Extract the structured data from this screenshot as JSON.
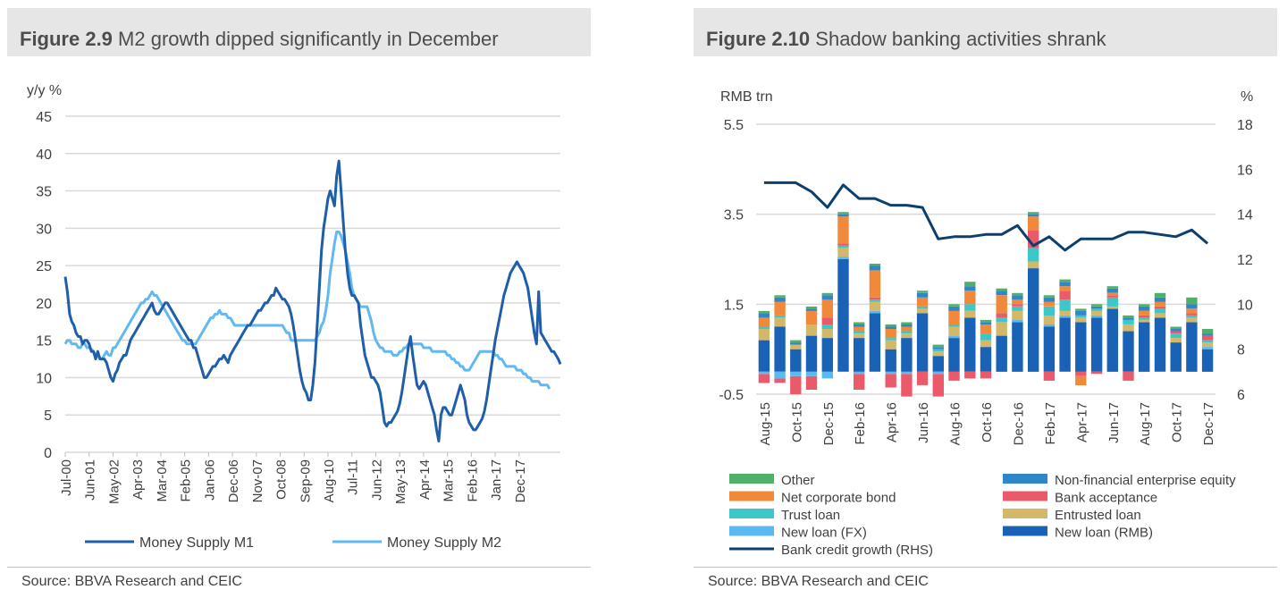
{
  "left": {
    "figure_label": "Figure 2.9",
    "title": "M2 growth dipped significantly in December",
    "source": "Source: BBVA Research and CEIC"
  },
  "right": {
    "figure_label": "Figure 2.10",
    "title": "Shadow banking activities shrank",
    "source": "Source: BBVA Research and CEIC"
  },
  "chart_data": [
    {
      "type": "line",
      "ylabel": "y/y %",
      "ylim": [
        0,
        45
      ],
      "yticks": [
        0,
        5,
        10,
        15,
        20,
        25,
        30,
        35,
        40,
        45
      ],
      "grid": true,
      "legend": "bottom",
      "x_tick_labels": [
        "Jul-00",
        "Jun-01",
        "May-02",
        "Apr-03",
        "Mar-04",
        "Feb-05",
        "Jan-06",
        "Dec-06",
        "Nov-07",
        "Oct-08",
        "Sep-09",
        "Aug-10",
        "Jul-11",
        "Jun-12",
        "May-13",
        "Apr-14",
        "Mar-15",
        "Feb-16",
        "Jan-17",
        "Dec-17"
      ],
      "x_start": "2000-07",
      "frequency": "monthly",
      "series": [
        {
          "name": "Money Supply M1",
          "color": "#1f5ea8",
          "values": [
            23.5,
            21.5,
            18.5,
            17.5,
            17,
            16,
            15.5,
            15.5,
            14.5,
            15,
            15,
            14.5,
            13.5,
            13.5,
            12.5,
            13.5,
            12.5,
            12.5,
            12.5,
            12,
            11,
            10,
            9.5,
            10.5,
            11,
            12,
            12.5,
            13,
            13,
            14,
            15,
            15.5,
            16,
            16.5,
            17,
            17.5,
            18,
            18.5,
            19,
            19.5,
            20,
            19,
            18.5,
            18.5,
            19,
            19.5,
            20,
            20,
            19.5,
            19,
            18.5,
            18,
            17.5,
            17,
            16.5,
            16,
            15.5,
            15,
            15,
            14,
            14,
            13,
            12,
            11,
            10,
            10,
            10.5,
            11,
            11.5,
            11.5,
            12,
            12.5,
            12.5,
            13,
            12.5,
            12,
            13,
            13.5,
            14,
            14.5,
            15,
            15.5,
            16,
            16.5,
            17,
            17,
            17.5,
            18,
            18.5,
            19,
            19,
            19.5,
            20,
            20,
            20.5,
            21,
            21,
            22,
            21.5,
            21,
            20.5,
            20.5,
            20,
            19.5,
            18.5,
            17,
            15,
            13,
            11,
            9.5,
            8.5,
            8,
            7,
            7,
            9,
            12,
            17,
            22,
            27,
            30,
            32,
            34,
            35,
            34,
            33,
            37,
            39,
            35,
            31,
            27,
            24,
            22,
            21,
            21,
            20.5,
            20,
            17,
            15,
            13,
            12,
            11,
            10,
            10,
            9.5,
            9,
            8,
            6,
            4,
            3.5,
            4,
            4,
            4.5,
            5,
            5.5,
            6.5,
            8,
            10,
            12,
            14,
            15.5,
            13,
            11,
            9,
            8.5,
            9,
            9.5,
            9,
            8,
            7,
            6,
            5,
            3,
            1.5,
            5,
            6,
            6,
            5.5,
            5,
            5,
            6,
            7,
            8,
            9,
            8,
            7,
            5,
            4,
            3.5,
            3,
            3,
            3.5,
            4,
            4.5,
            5.5,
            7,
            9,
            11,
            13,
            15,
            16.5,
            18,
            19.5,
            21,
            22,
            23,
            24,
            24.5,
            25,
            25.5,
            25,
            24.5,
            24,
            23,
            22,
            20,
            18,
            16,
            14.5,
            21.5,
            16,
            15.5,
            15,
            14.5,
            14,
            13.5,
            13.5,
            13,
            12.5,
            11.8
          ]
        },
        {
          "name": "Money Supply M2",
          "color": "#62b8f0",
          "values": [
            14.5,
            15,
            15,
            14.5,
            14.5,
            14.5,
            14,
            14,
            14.5,
            14.5,
            14,
            14,
            13.8,
            13.5,
            13,
            13,
            12.5,
            12.5,
            13,
            13.5,
            13,
            13,
            14,
            14,
            14.5,
            15,
            15.5,
            16,
            16.5,
            17,
            17.5,
            18,
            18.5,
            19,
            19.5,
            20,
            20,
            20.5,
            20.5,
            21,
            21.5,
            21,
            21,
            20.5,
            20,
            19.5,
            19,
            18.5,
            18,
            17.5,
            17,
            16.5,
            16,
            15.5,
            15,
            15,
            14.5,
            14.5,
            14.5,
            14.5,
            14.5,
            15,
            15.5,
            16,
            16.5,
            17,
            17.5,
            18,
            18,
            18.5,
            18.5,
            19,
            18.5,
            18.5,
            18.5,
            18,
            18,
            17.5,
            17,
            17,
            17,
            17,
            17,
            17,
            17,
            17,
            17,
            17,
            17,
            17,
            17,
            17,
            17,
            17,
            17,
            17,
            17,
            17,
            17,
            17,
            17,
            16.5,
            16,
            16,
            15,
            15,
            15,
            15,
            15,
            15,
            15,
            15,
            15,
            15,
            15,
            15,
            15.5,
            16,
            17,
            17.5,
            19,
            21,
            24,
            26,
            28,
            29.5,
            29.5,
            29,
            28,
            27,
            25.5,
            24,
            22,
            21,
            20.5,
            20,
            19.5,
            19.5,
            19.5,
            19.5,
            18.5,
            17.5,
            16,
            15,
            14.5,
            14,
            14,
            13.5,
            13.5,
            13.5,
            13.5,
            13,
            13,
            13,
            13.5,
            13.5,
            14,
            14,
            14.5,
            14.5,
            14.5,
            14.5,
            14.5,
            14.5,
            14.5,
            14,
            14,
            14,
            14,
            13.5,
            13.5,
            13.5,
            13.5,
            13.5,
            13.5,
            13.5,
            13,
            13,
            12.5,
            12.5,
            12,
            12,
            11.5,
            11.5,
            11,
            11,
            11,
            11.5,
            12,
            12.5,
            13,
            13.5,
            13.5,
            13.5,
            13.5,
            13.5,
            13.5,
            13.5,
            13,
            13,
            12.5,
            12.5,
            12,
            11.5,
            11.5,
            11.5,
            11.5,
            11.5,
            11,
            11,
            11,
            10.5,
            10.5,
            10,
            10,
            9.5,
            9.5,
            9.5,
            9.5,
            9,
            9,
            9,
            9,
            8.5
          ]
        }
      ]
    },
    {
      "type": "bar",
      "stacked": true,
      "ylabel": "RMB trn",
      "y2label": "%",
      "ylim": [
        -0.5,
        5.5
      ],
      "yticks": [
        -0.5,
        1.5,
        3.5,
        5.5
      ],
      "y2lim": [
        6,
        18
      ],
      "y2ticks": [
        6,
        8,
        10,
        12,
        14,
        16,
        18
      ],
      "grid": true,
      "legend": "bottom",
      "categories": [
        "Aug-15",
        "Sep-15",
        "Oct-15",
        "Nov-15",
        "Dec-15",
        "Jan-16",
        "Feb-16",
        "Mar-16",
        "Apr-16",
        "May-16",
        "Jun-16",
        "Jul-16",
        "Aug-16",
        "Sep-16",
        "Oct-16",
        "Nov-16",
        "Dec-16",
        "Jan-17",
        "Feb-17",
        "Mar-17",
        "Apr-17",
        "May-17",
        "Jun-17",
        "Jul-17",
        "Aug-17",
        "Sep-17",
        "Oct-17",
        "Nov-17",
        "Dec-17"
      ],
      "x_tick_labels": [
        "Aug-15",
        "Oct-15",
        "Dec-15",
        "Feb-16",
        "Apr-16",
        "Jun-16",
        "Aug-16",
        "Oct-16",
        "Dec-16",
        "Feb-17",
        "Apr-17",
        "Jun-17",
        "Aug-17",
        "Oct-17",
        "Dec-17"
      ],
      "series": [
        {
          "name": "New loan (RMB)",
          "color": "#1a62b5",
          "values": [
            0.7,
            1.0,
            0.5,
            0.8,
            0.75,
            2.5,
            0.75,
            1.3,
            0.5,
            0.75,
            1.3,
            0.35,
            0.75,
            1.2,
            0.55,
            0.8,
            1.1,
            2.3,
            1.0,
            1.2,
            1.1,
            1.2,
            1.4,
            0.9,
            1.1,
            1.2,
            0.65,
            1.1,
            0.5
          ]
        },
        {
          "name": "New loan (FX)",
          "color": "#5bb8f0",
          "values": [
            -0.05,
            -0.15,
            -0.1,
            -0.1,
            -0.15,
            0.05,
            -0.05,
            0.05,
            -0.05,
            -0.05,
            0,
            -0.05,
            0.05,
            0,
            0,
            0,
            0.05,
            0,
            0.05,
            0.05,
            0,
            0.05,
            0,
            0,
            0,
            0,
            0,
            0,
            0.05
          ]
        },
        {
          "name": "Entrusted loan",
          "color": "#d4b86a",
          "values": [
            0.25,
            0.2,
            0.1,
            0.25,
            0.2,
            0.2,
            0.1,
            0.2,
            0.2,
            0.1,
            0.1,
            0.1,
            0.2,
            0.15,
            0.15,
            0.3,
            0.2,
            0.15,
            0.2,
            0.1,
            0.1,
            0.1,
            0.05,
            0.15,
            0.05,
            0.1,
            0.1,
            0.1,
            0.1
          ]
        },
        {
          "name": "Trust loan",
          "color": "#3cc8c8",
          "values": [
            0.05,
            0.05,
            0,
            0,
            0.1,
            0.05,
            0.05,
            0.05,
            0.05,
            0.05,
            0.05,
            0.05,
            0.05,
            0.15,
            0.15,
            0.1,
            0.1,
            0.3,
            0.2,
            0.25,
            0.05,
            0.05,
            0.2,
            0.1,
            0.05,
            0.1,
            0.1,
            0.05,
            0.05
          ]
        },
        {
          "name": "Bank acceptance",
          "color": "#eb5a6a",
          "values": [
            -0.2,
            -0.1,
            -0.4,
            -0.3,
            0.15,
            0.05,
            -0.35,
            0.05,
            -0.3,
            -0.5,
            -0.3,
            -0.5,
            -0.2,
            -0.15,
            -0.15,
            0.1,
            0.05,
            0.4,
            -0.2,
            0.2,
            -0.1,
            -0.05,
            0.05,
            -0.2,
            0.05,
            0.05,
            0.05,
            0.05,
            0.1
          ]
        },
        {
          "name": "Net corporate bond",
          "color": "#f08a3a",
          "values": [
            0.2,
            0.3,
            0,
            0.3,
            0.4,
            0.6,
            0.1,
            0.6,
            0.2,
            0.1,
            0.2,
            0,
            0.3,
            0.3,
            0.2,
            0.4,
            0.1,
            0.3,
            0.1,
            0.1,
            -0.2,
            0,
            0.05,
            0,
            0.1,
            0.1,
            0,
            0.1,
            0
          ]
        },
        {
          "name": "Non-financial enterprise equity",
          "color": "#2f86c8",
          "values": [
            0.1,
            0.1,
            0.05,
            0.05,
            0.1,
            0.05,
            0.05,
            0.1,
            0.05,
            0.05,
            0.1,
            0.05,
            0.1,
            0.1,
            0.05,
            0.1,
            0.1,
            0.05,
            0.1,
            0.1,
            0.1,
            0.05,
            0.1,
            0.05,
            0.1,
            0.1,
            0.05,
            0.1,
            0.05
          ]
        },
        {
          "name": "Other",
          "color": "#4fb06a",
          "values": [
            0.05,
            0.05,
            0.05,
            0.05,
            0.05,
            0.05,
            0.05,
            0.05,
            0.05,
            0.05,
            0.05,
            0.05,
            0.05,
            0.1,
            0.05,
            0.05,
            0.05,
            0.05,
            0.05,
            0.05,
            0.05,
            0.05,
            0.05,
            0.05,
            0.05,
            0.1,
            0.05,
            0.15,
            0.1
          ]
        },
        {
          "name": "Bank credit growth (RHS)",
          "color": "#0d3f6e",
          "type": "line",
          "axis": "right",
          "values": [
            15.4,
            15.4,
            15.4,
            15.0,
            14.3,
            15.3,
            14.7,
            14.7,
            14.4,
            14.4,
            14.3,
            12.9,
            13.0,
            13.0,
            13.1,
            13.1,
            13.5,
            12.6,
            13.0,
            12.4,
            12.9,
            12.9,
            12.9,
            13.2,
            13.2,
            13.1,
            13.0,
            13.3,
            12.7
          ]
        }
      ]
    }
  ]
}
